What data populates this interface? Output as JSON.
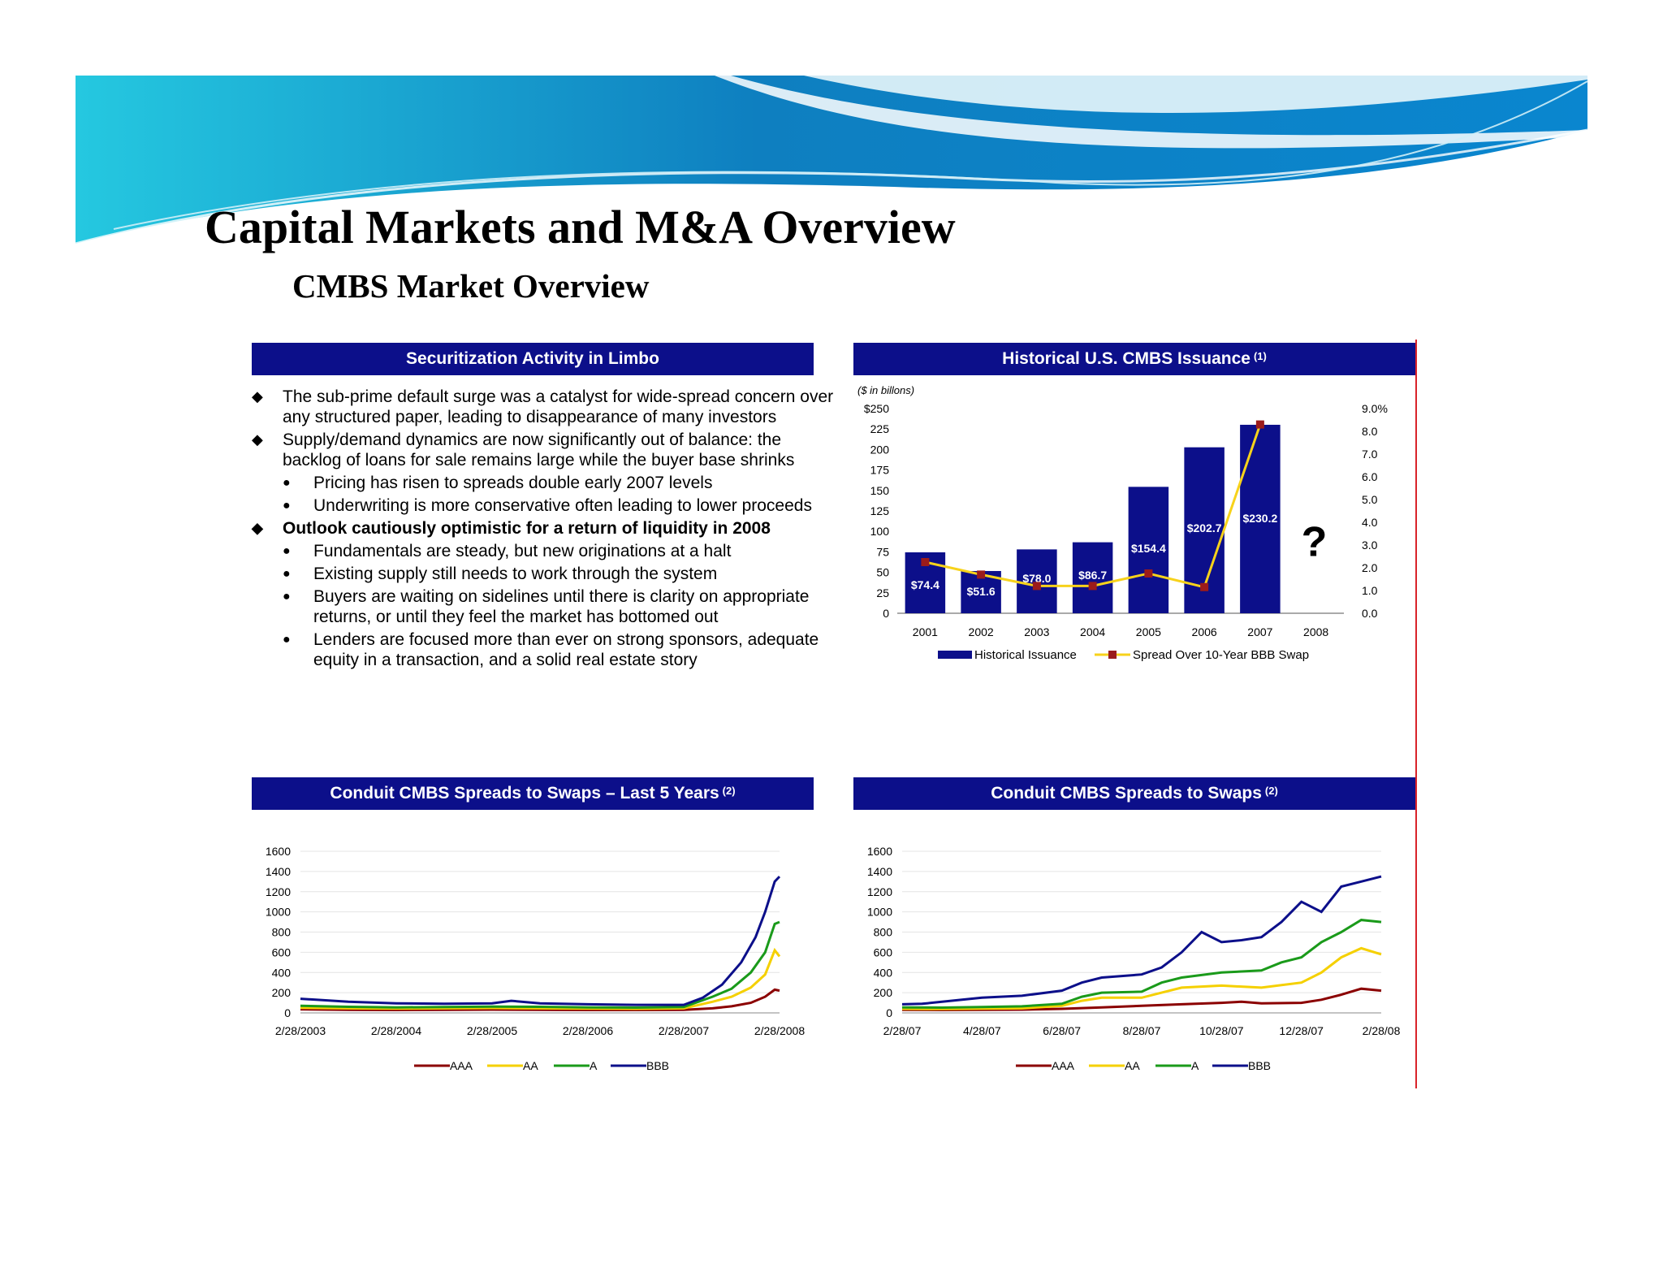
{
  "page": {
    "title": "Capital Markets and M&A Overview",
    "subtitle": "CMBS Market Overview"
  },
  "colors": {
    "header_bg": "#0c0f8a",
    "bar": "#0c0f8a",
    "spread_line": "#f7d21b",
    "spread_marker": "#9b1b1b",
    "aaa": "#8b0000",
    "aa": "#f5d000",
    "a": "#1a9a1a",
    "bbb": "#0c0f8a",
    "divider": "#d9232a"
  },
  "panels": {
    "limbo": {
      "title": "Securitization Activity in Limbo"
    },
    "issuance": {
      "title": "Historical U.S. CMBS Issuance",
      "footnote": "(1)"
    },
    "spreads5": {
      "title": "Conduit CMBS Spreads to Swaps – Last 5 Years",
      "footnote": "(2)"
    },
    "spreads": {
      "title": "Conduit CMBS Spreads to Swaps",
      "footnote": "(2)"
    }
  },
  "bullets": [
    {
      "level": 1,
      "bold": false,
      "text": "The sub-prime default surge was a catalyst for wide-spread concern over any structured paper, leading to disappearance of many investors"
    },
    {
      "level": 1,
      "bold": false,
      "text": "Supply/demand dynamics are now significantly out of balance: the backlog of loans for sale remains large while the buyer base shrinks"
    },
    {
      "level": 2,
      "bold": false,
      "text": "Pricing has risen to spreads double early 2007 levels"
    },
    {
      "level": 2,
      "bold": false,
      "text": "Underwriting is more conservative often leading to lower proceeds"
    },
    {
      "level": 1,
      "bold": true,
      "text": "Outlook cautiously optimistic for a return of liquidity in 2008"
    },
    {
      "level": 2,
      "bold": false,
      "text": "Fundamentals are steady, but new originations at a halt"
    },
    {
      "level": 2,
      "bold": false,
      "text": "Existing supply still needs to work through the system"
    },
    {
      "level": 2,
      "bold": false,
      "text": "Buyers are waiting on sidelines until there is clarity on appropriate returns, or until they feel the market has bottomed out"
    },
    {
      "level": 2,
      "bold": false,
      "text": "Lenders are focused more than ever on strong sponsors, adequate equity in a transaction, and a solid real estate story"
    }
  ],
  "chart_data": [
    {
      "type": "bar",
      "title": "Historical U.S. CMBS Issuance",
      "unit_note": "($ in billons)",
      "categories": [
        "2001",
        "2002",
        "2003",
        "2004",
        "2005",
        "2006",
        "2007",
        "2008"
      ],
      "series": [
        {
          "name": "Historical Issuance",
          "type": "bar",
          "axis": "left",
          "values": [
            74.4,
            51.6,
            78.0,
            86.7,
            154.4,
            202.7,
            230.2,
            null
          ],
          "labels": [
            "$74.4",
            "$51.6",
            "$78.0",
            "$86.7",
            "$154.4",
            "$202.7",
            "$230.2",
            ""
          ]
        },
        {
          "name": "Spread Over 10-Year BBB Swap",
          "type": "line",
          "axis": "right",
          "values": [
            2.25,
            1.7,
            1.2,
            1.2,
            1.75,
            1.15,
            8.3,
            null
          ]
        }
      ],
      "annotation": "?",
      "left_ticks": [
        "$250",
        "225",
        "200",
        "175",
        "150",
        "125",
        "100",
        "75",
        "50",
        "25",
        "0"
      ],
      "right_ticks": [
        "9.0%",
        "8.0",
        "7.0",
        "6.0",
        "5.0",
        "4.0",
        "3.0",
        "2.0",
        "1.0",
        "0.0"
      ],
      "ylim": [
        0,
        250
      ],
      "y2lim": [
        0,
        9
      ],
      "legend": "bottom",
      "grid": false
    },
    {
      "type": "line",
      "title": "Conduit CMBS Spreads to Swaps – Last 5 Years",
      "x_ticks": [
        "2/28/2003",
        "2/28/2004",
        "2/28/2005",
        "2/28/2006",
        "2/28/2007",
        "2/28/2008"
      ],
      "y_ticks": [
        "1600",
        "1400",
        "1200",
        "1000",
        "800",
        "600",
        "400",
        "200",
        "0"
      ],
      "ylim": [
        0,
        1600
      ],
      "x_unit": "years since 2/28/2003",
      "xlim": [
        0,
        5
      ],
      "legend": "bottom",
      "grid": true,
      "series": [
        {
          "name": "AAA",
          "points": [
            [
              0,
              35
            ],
            [
              0.5,
              30
            ],
            [
              1,
              28
            ],
            [
              1.5,
              30
            ],
            [
              2,
              32
            ],
            [
              2.5,
              30
            ],
            [
              3,
              28
            ],
            [
              3.5,
              28
            ],
            [
              4,
              30
            ],
            [
              4.3,
              45
            ],
            [
              4.5,
              65
            ],
            [
              4.7,
              100
            ],
            [
              4.85,
              160
            ],
            [
              4.95,
              230
            ],
            [
              5,
              220
            ]
          ]
        },
        {
          "name": "AA",
          "points": [
            [
              0,
              50
            ],
            [
              0.5,
              45
            ],
            [
              1,
              42
            ],
            [
              1.5,
              45
            ],
            [
              2,
              48
            ],
            [
              2.5,
              45
            ],
            [
              3,
              42
            ],
            [
              3.5,
              40
            ],
            [
              4,
              45
            ],
            [
              4.3,
              110
            ],
            [
              4.5,
              160
            ],
            [
              4.7,
              250
            ],
            [
              4.85,
              380
            ],
            [
              4.95,
              620
            ],
            [
              5,
              560
            ]
          ]
        },
        {
          "name": "A",
          "points": [
            [
              0,
              70
            ],
            [
              0.5,
              60
            ],
            [
              1,
              55
            ],
            [
              1.5,
              58
            ],
            [
              2,
              62
            ],
            [
              2.5,
              60
            ],
            [
              3,
              55
            ],
            [
              3.5,
              52
            ],
            [
              4,
              58
            ],
            [
              4.3,
              160
            ],
            [
              4.5,
              240
            ],
            [
              4.7,
              400
            ],
            [
              4.85,
              600
            ],
            [
              4.95,
              880
            ],
            [
              5,
              900
            ]
          ]
        },
        {
          "name": "BBB",
          "points": [
            [
              0,
              140
            ],
            [
              0.5,
              110
            ],
            [
              1,
              95
            ],
            [
              1.5,
              90
            ],
            [
              2,
              95
            ],
            [
              2.2,
              120
            ],
            [
              2.5,
              95
            ],
            [
              3,
              85
            ],
            [
              3.5,
              80
            ],
            [
              4,
              80
            ],
            [
              4.2,
              150
            ],
            [
              4.4,
              280
            ],
            [
              4.6,
              500
            ],
            [
              4.75,
              750
            ],
            [
              4.85,
              1000
            ],
            [
              4.95,
              1300
            ],
            [
              5,
              1350
            ]
          ]
        }
      ]
    },
    {
      "type": "line",
      "title": "Conduit CMBS Spreads to Swaps",
      "x_ticks": [
        "2/28/07",
        "4/28/07",
        "6/28/07",
        "8/28/07",
        "10/28/07",
        "12/28/07",
        "2/28/08"
      ],
      "y_ticks": [
        "1600",
        "1400",
        "1200",
        "1000",
        "800",
        "600",
        "400",
        "200",
        "0"
      ],
      "ylim": [
        0,
        1600
      ],
      "x_unit": "months since 2/28/07",
      "xlim": [
        0,
        12
      ],
      "legend": "bottom",
      "grid": true,
      "series": [
        {
          "name": "AAA",
          "points": [
            [
              0,
              30
            ],
            [
              1,
              28
            ],
            [
              2,
              30
            ],
            [
              3,
              32
            ],
            [
              4,
              40
            ],
            [
              5,
              55
            ],
            [
              6,
              70
            ],
            [
              7,
              85
            ],
            [
              8,
              100
            ],
            [
              8.5,
              110
            ],
            [
              9,
              95
            ],
            [
              10,
              100
            ],
            [
              10.5,
              130
            ],
            [
              11,
              180
            ],
            [
              11.5,
              240
            ],
            [
              12,
              220
            ]
          ]
        },
        {
          "name": "AA",
          "points": [
            [
              0,
              40
            ],
            [
              1,
              38
            ],
            [
              2,
              42
            ],
            [
              3,
              45
            ],
            [
              4,
              70
            ],
            [
              4.5,
              120
            ],
            [
              5,
              150
            ],
            [
              6,
              150
            ],
            [
              6.5,
              200
            ],
            [
              7,
              250
            ],
            [
              8,
              270
            ],
            [
              9,
              250
            ],
            [
              10,
              300
            ],
            [
              10.5,
              400
            ],
            [
              11,
              550
            ],
            [
              11.5,
              640
            ],
            [
              12,
              580
            ]
          ]
        },
        {
          "name": "A",
          "points": [
            [
              0,
              55
            ],
            [
              1,
              52
            ],
            [
              2,
              58
            ],
            [
              3,
              65
            ],
            [
              4,
              90
            ],
            [
              4.5,
              160
            ],
            [
              5,
              200
            ],
            [
              6,
              210
            ],
            [
              6.5,
              300
            ],
            [
              7,
              350
            ],
            [
              8,
              400
            ],
            [
              9,
              420
            ],
            [
              9.5,
              500
            ],
            [
              10,
              550
            ],
            [
              10.5,
              700
            ],
            [
              11,
              800
            ],
            [
              11.5,
              920
            ],
            [
              12,
              900
            ]
          ]
        },
        {
          "name": "BBB",
          "points": [
            [
              0,
              85
            ],
            [
              0.5,
              90
            ],
            [
              1,
              110
            ],
            [
              2,
              150
            ],
            [
              3,
              170
            ],
            [
              4,
              220
            ],
            [
              4.5,
              300
            ],
            [
              5,
              350
            ],
            [
              6,
              380
            ],
            [
              6.5,
              450
            ],
            [
              7,
              600
            ],
            [
              7.5,
              800
            ],
            [
              8,
              700
            ],
            [
              8.5,
              720
            ],
            [
              9,
              750
            ],
            [
              9.5,
              900
            ],
            [
              10,
              1100
            ],
            [
              10.5,
              1000
            ],
            [
              11,
              1250
            ],
            [
              11.5,
              1300
            ],
            [
              12,
              1350
            ]
          ]
        }
      ]
    }
  ]
}
